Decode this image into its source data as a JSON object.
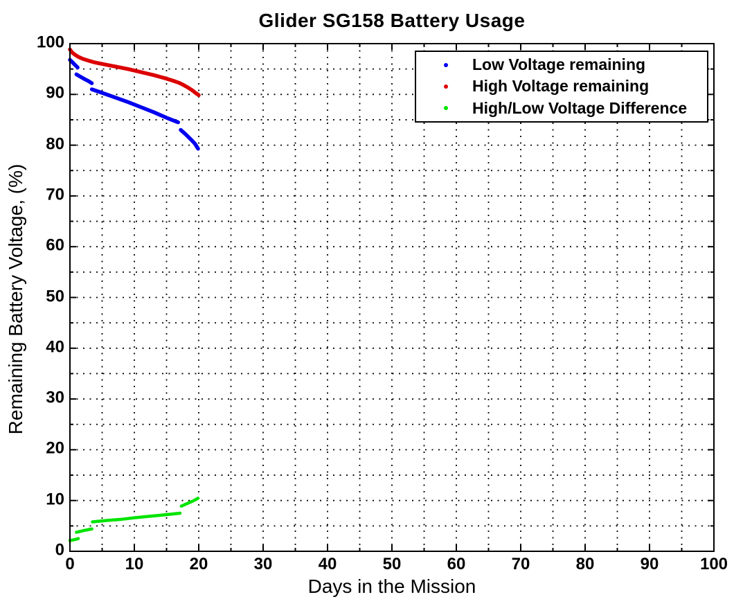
{
  "chart_data": {
    "type": "line",
    "title": "Glider SG158 Battery Usage",
    "xlabel": "Days in the Mission",
    "ylabel": "Remaining Battery Voltage, (%)",
    "xlim": [
      0,
      100
    ],
    "ylim": [
      0,
      100
    ],
    "x_major_ticks": [
      0,
      10,
      20,
      30,
      40,
      50,
      60,
      70,
      80,
      90,
      100
    ],
    "y_major_ticks": [
      0,
      10,
      20,
      30,
      40,
      50,
      60,
      70,
      80,
      90,
      100
    ],
    "minor_tick_step": 5,
    "grid": true,
    "grid_style": "dotted",
    "grid_color": "#000000",
    "axis_color": "#000000",
    "legend_position": "top-right",
    "series": [
      {
        "name": "Low Voltage remaining",
        "color": "#0000EE",
        "marker": "dot",
        "segments": [
          [
            [
              0,
              96.8
            ],
            [
              0.4,
              96.3
            ],
            [
              0.8,
              95.8
            ],
            [
              1.2,
              95.3
            ]
          ],
          [
            [
              1.0,
              93.95
            ],
            [
              1.6,
              93.5
            ],
            [
              2.3,
              93.0
            ],
            [
              2.9,
              92.6
            ],
            [
              3.4,
              92.2
            ]
          ],
          [
            [
              3.4,
              91.0
            ],
            [
              4.9,
              90.35
            ],
            [
              7,
              89.4
            ],
            [
              9,
              88.5
            ],
            [
              11,
              87.5
            ],
            [
              13,
              86.5
            ],
            [
              15,
              85.4
            ],
            [
              16.2,
              84.8
            ],
            [
              16.8,
              84.5
            ]
          ],
          [
            [
              17.2,
              83.0
            ],
            [
              18,
              82.1
            ],
            [
              18.8,
              81.1
            ],
            [
              19.4,
              80.3
            ],
            [
              19.9,
              79.3
            ]
          ]
        ]
      },
      {
        "name": "High Voltage remaining",
        "color": "#DC0000",
        "marker": "dot",
        "segments": [
          [
            [
              0,
              98.85
            ],
            [
              0.3,
              98.3
            ],
            [
              0.8,
              97.8
            ],
            [
              1.3,
              97.4
            ],
            [
              2,
              97.0
            ],
            [
              3,
              96.6
            ],
            [
              4,
              96.25
            ],
            [
              5,
              96.0
            ],
            [
              6,
              95.75
            ],
            [
              7,
              95.5
            ],
            [
              8,
              95.25
            ],
            [
              9,
              95.0
            ],
            [
              10,
              94.7
            ],
            [
              11,
              94.4
            ],
            [
              12,
              94.1
            ],
            [
              13,
              93.8
            ],
            [
              14,
              93.45
            ],
            [
              15,
              93.1
            ],
            [
              16,
              92.7
            ],
            [
              17,
              92.25
            ],
            [
              17.7,
              91.8
            ],
            [
              18.4,
              91.3
            ],
            [
              19,
              90.8
            ],
            [
              19.5,
              90.3
            ],
            [
              20,
              89.85
            ]
          ]
        ]
      },
      {
        "name": "High/Low Voltage Difference",
        "color": "#00E400",
        "marker": "dot",
        "segments": [
          [
            [
              0,
              2.1
            ],
            [
              0.7,
              2.3
            ],
            [
              1.3,
              2.5
            ]
          ],
          [
            [
              1.0,
              3.75
            ],
            [
              2.2,
              4.1
            ],
            [
              3.4,
              4.4
            ]
          ],
          [
            [
              3.5,
              5.8
            ],
            [
              6,
              6.1
            ],
            [
              8,
              6.3
            ],
            [
              10,
              6.6
            ],
            [
              12,
              6.85
            ],
            [
              14,
              7.1
            ],
            [
              16,
              7.35
            ],
            [
              17.1,
              7.5
            ]
          ],
          [
            [
              17.3,
              8.9
            ],
            [
              18.2,
              9.4
            ],
            [
              19.1,
              9.9
            ],
            [
              19.9,
              10.45
            ]
          ]
        ]
      }
    ]
  },
  "legend": {
    "items": [
      {
        "label": "Low Voltage remaining",
        "color": "#0000EE"
      },
      {
        "label": "High Voltage remaining",
        "color": "#DC0000"
      },
      {
        "label": "High/Low Voltage Difference",
        "color": "#00E400"
      }
    ]
  }
}
